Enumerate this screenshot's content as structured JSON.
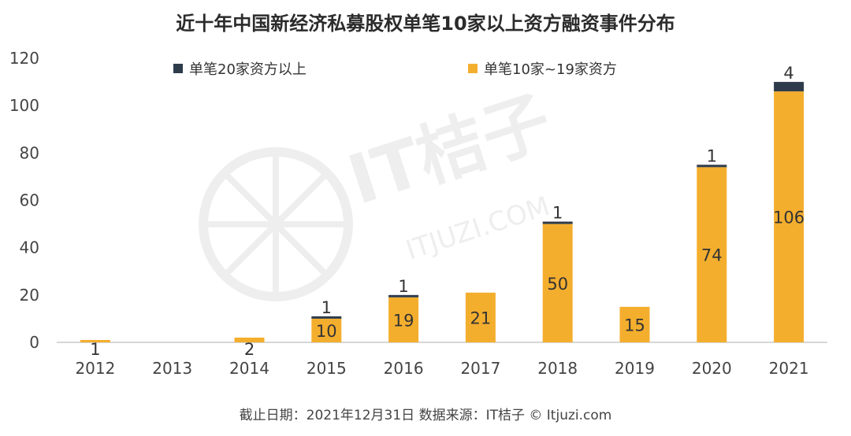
{
  "chart_data": {
    "type": "bar",
    "stacked": true,
    "title": "近十年中国新经济私募股权单笔10家以上资方融资事件分布",
    "categories": [
      "2012",
      "2013",
      "2014",
      "2015",
      "2016",
      "2017",
      "2018",
      "2019",
      "2020",
      "2021"
    ],
    "series": [
      {
        "name": "单笔10家~19家资方",
        "color": "#F4AE2E",
        "values": [
          1,
          0,
          2,
          10,
          19,
          21,
          50,
          15,
          74,
          106
        ],
        "labels": [
          "1",
          "",
          "2",
          "10",
          "19",
          "21",
          "50",
          "15",
          "74",
          "106"
        ]
      },
      {
        "name": "单笔20家资方以上",
        "color": "#2E3B4B",
        "values": [
          0,
          0,
          0,
          1,
          1,
          0,
          1,
          0,
          1,
          4
        ],
        "labels": [
          "",
          "",
          "",
          "1",
          "1",
          "",
          "1",
          "",
          "1",
          "4"
        ]
      }
    ],
    "ylim": [
      0,
      120
    ],
    "yticks": [
      0,
      20,
      40,
      60,
      80,
      100,
      120
    ],
    "grid": false,
    "legend_position": "top"
  },
  "legend": {
    "item_dark": "单笔20家资方以上",
    "item_orange": "单笔10家~19家资方"
  },
  "watermark": {
    "brand": "IT桔子",
    "url": "ITJUZI.COM"
  },
  "footer": "截止日期：2021年12月31日    数据来源：IT桔子 © Itjuzi.com"
}
